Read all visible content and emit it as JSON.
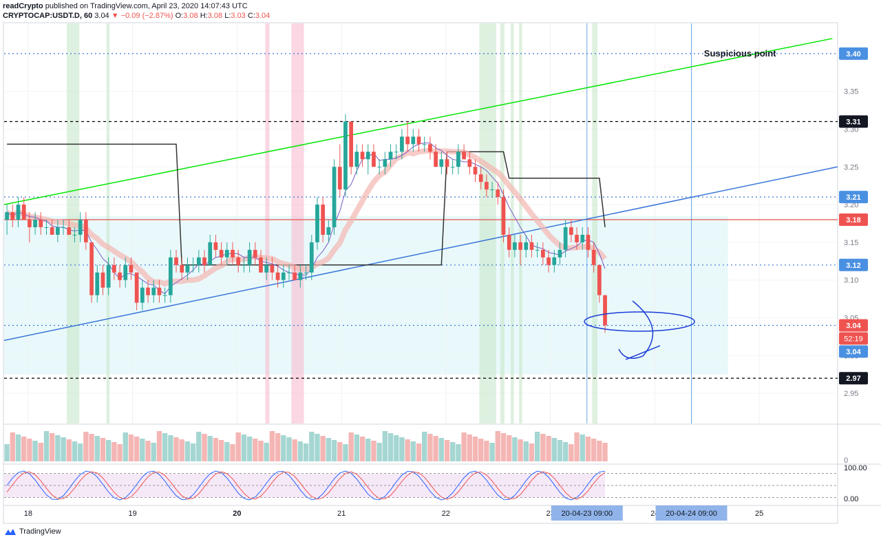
{
  "header": {
    "author": "readCrypto",
    "published": "published on TradingView.com, April 23, 2020 14:07:43 UTC",
    "symbol": "CRYPTOCAP:USDT.D, 60",
    "last": "3.04",
    "change_arrow": "▼",
    "change": "−0.09 (−2.87%)",
    "ohlc": {
      "o_label": "O:",
      "o": "3.08",
      "h_label": "H:",
      "h": "3.08",
      "l_label": "L:",
      "l": "3.03",
      "c_label": "C:",
      "c": "3.04"
    }
  },
  "footer": {
    "brand": "TradingView"
  },
  "colors": {
    "up": "#26a69a",
    "down": "#ef5350",
    "blue": "#2962ff",
    "green_line": "#00e600",
    "blue_line": "#3a76d9",
    "red_line": "#e8504a",
    "label_blue": "#4a90e2",
    "label_red": "#ef5350"
  },
  "chart_data": {
    "type": "candlestick",
    "timeframe": "60",
    "ylim": [
      2.91,
      3.44
    ],
    "y_ticks": [
      2.95,
      3.0,
      3.05,
      3.1,
      3.15,
      3.2,
      3.25,
      3.3,
      3.35
    ],
    "x_ticks": [
      {
        "label": "18",
        "x": 18.2
      },
      {
        "label": "19",
        "x": 19.2
      },
      {
        "label": "20",
        "x": 20.2
      },
      {
        "label": "21",
        "x": 21.2
      },
      {
        "label": "22",
        "x": 22.2
      },
      {
        "label": "23",
        "x": 23.2
      },
      {
        "label": "24",
        "x": 24.2
      },
      {
        "label": "25",
        "x": 25.2
      }
    ],
    "xlim": [
      17.97,
      25.95
    ],
    "price_labels": [
      {
        "value": 3.4,
        "text": "3.40",
        "style": "blue"
      },
      {
        "value": 3.31,
        "text": "3.31",
        "style": "black"
      },
      {
        "value": 3.21,
        "text": "3.21",
        "style": "blue"
      },
      {
        "value": 3.18,
        "text": "3.18",
        "style": "red"
      },
      {
        "value": 3.12,
        "text": "3.12",
        "style": "blue"
      },
      {
        "value": 3.04,
        "text": "3.04",
        "style": "red"
      },
      {
        "value": 3.04,
        "text": "3.04",
        "style": "blue"
      },
      {
        "value": 2.97,
        "text": "2.97",
        "style": "black"
      }
    ],
    "countdown": "52:19",
    "horizontal_lines": [
      {
        "value": 3.4,
        "style": "dotted",
        "color": "blue"
      },
      {
        "value": 3.31,
        "style": "dashed",
        "color": "black"
      },
      {
        "value": 3.21,
        "style": "dotted",
        "color": "blue"
      },
      {
        "value": 3.18,
        "style": "solid",
        "color": "red"
      },
      {
        "value": 3.12,
        "style": "dotted",
        "color": "blue"
      },
      {
        "value": 3.04,
        "style": "dotted",
        "color": "blue"
      },
      {
        "value": 2.97,
        "style": "dashed",
        "color": "black"
      }
    ],
    "trendlines": [
      {
        "name": "upper",
        "color": "green",
        "from": [
          17.97,
          3.2
        ],
        "to": [
          25.9,
          3.42
        ]
      },
      {
        "name": "lower",
        "color": "blue",
        "from": [
          17.97,
          3.02
        ],
        "to": [
          25.95,
          3.25
        ]
      }
    ],
    "annotation": {
      "text": "Suspicious point",
      "x": 25.4,
      "y": 3.4
    },
    "date_labels": [
      "20-04-23   09:00",
      "20-04-24   09:00"
    ],
    "volume_zero_label": "0",
    "oscillator_labels": [
      "100.00",
      "0.00"
    ],
    "candles": [
      [
        3.18,
        3.2,
        3.16,
        3.19
      ],
      [
        3.19,
        3.2,
        3.17,
        3.18
      ],
      [
        3.18,
        3.21,
        3.17,
        3.2
      ],
      [
        3.2,
        3.21,
        3.18,
        3.18
      ],
      [
        3.18,
        3.19,
        3.15,
        3.17
      ],
      [
        3.17,
        3.19,
        3.16,
        3.18
      ],
      [
        3.18,
        3.19,
        3.16,
        3.17
      ],
      [
        3.17,
        3.18,
        3.16,
        3.17
      ],
      [
        3.17,
        3.18,
        3.16,
        3.16
      ],
      [
        3.16,
        3.18,
        3.15,
        3.17
      ],
      [
        3.17,
        3.18,
        3.16,
        3.17
      ],
      [
        3.17,
        3.18,
        3.16,
        3.16
      ],
      [
        3.16,
        3.17,
        3.15,
        3.16
      ],
      [
        3.16,
        3.19,
        3.15,
        3.18
      ],
      [
        3.18,
        3.19,
        3.14,
        3.15
      ],
      [
        3.15,
        3.15,
        3.07,
        3.08
      ],
      [
        3.08,
        3.12,
        3.07,
        3.11
      ],
      [
        3.11,
        3.12,
        3.08,
        3.09
      ],
      [
        3.09,
        3.13,
        3.08,
        3.12
      ],
      [
        3.12,
        3.13,
        3.1,
        3.11
      ],
      [
        3.11,
        3.12,
        3.09,
        3.1
      ],
      [
        3.1,
        3.13,
        3.09,
        3.12
      ],
      [
        3.12,
        3.13,
        3.1,
        3.11
      ],
      [
        3.11,
        3.11,
        3.06,
        3.07
      ],
      [
        3.07,
        3.1,
        3.06,
        3.09
      ],
      [
        3.09,
        3.1,
        3.07,
        3.08
      ],
      [
        3.08,
        3.1,
        3.07,
        3.09
      ],
      [
        3.09,
        3.1,
        3.07,
        3.08
      ],
      [
        3.08,
        3.09,
        3.07,
        3.08
      ],
      [
        3.08,
        3.14,
        3.07,
        3.13
      ],
      [
        3.13,
        3.14,
        3.11,
        3.12
      ],
      [
        3.12,
        3.13,
        3.1,
        3.11
      ],
      [
        3.11,
        3.13,
        3.1,
        3.12
      ],
      [
        3.12,
        3.13,
        3.11,
        3.12
      ],
      [
        3.12,
        3.14,
        3.11,
        3.13
      ],
      [
        3.13,
        3.14,
        3.11,
        3.12
      ],
      [
        3.12,
        3.16,
        3.12,
        3.15
      ],
      [
        3.15,
        3.16,
        3.13,
        3.14
      ],
      [
        3.14,
        3.15,
        3.12,
        3.13
      ],
      [
        3.13,
        3.15,
        3.12,
        3.14
      ],
      [
        3.14,
        3.15,
        3.12,
        3.13
      ],
      [
        3.13,
        3.14,
        3.11,
        3.12
      ],
      [
        3.12,
        3.13,
        3.11,
        3.12
      ],
      [
        3.12,
        3.15,
        3.11,
        3.14
      ],
      [
        3.14,
        3.15,
        3.12,
        3.13
      ],
      [
        3.13,
        3.14,
        3.11,
        3.11
      ],
      [
        3.11,
        3.13,
        3.1,
        3.12
      ],
      [
        3.12,
        3.13,
        3.1,
        3.11
      ],
      [
        3.11,
        3.12,
        3.09,
        3.1
      ],
      [
        3.1,
        3.12,
        3.09,
        3.11
      ],
      [
        3.11,
        3.12,
        3.1,
        3.11
      ],
      [
        3.11,
        3.12,
        3.1,
        3.1
      ],
      [
        3.1,
        3.12,
        3.09,
        3.11
      ],
      [
        3.11,
        3.12,
        3.1,
        3.11
      ],
      [
        3.11,
        3.16,
        3.1,
        3.15
      ],
      [
        3.15,
        3.21,
        3.14,
        3.2
      ],
      [
        3.2,
        3.21,
        3.15,
        3.16
      ],
      [
        3.16,
        3.18,
        3.15,
        3.17
      ],
      [
        3.17,
        3.26,
        3.16,
        3.25
      ],
      [
        3.25,
        3.28,
        3.21,
        3.22
      ],
      [
        3.22,
        3.32,
        3.21,
        3.31
      ],
      [
        3.31,
        3.31,
        3.24,
        3.25
      ],
      [
        3.25,
        3.28,
        3.24,
        3.27
      ],
      [
        3.27,
        3.28,
        3.25,
        3.26
      ],
      [
        3.26,
        3.28,
        3.24,
        3.27
      ],
      [
        3.27,
        3.28,
        3.25,
        3.25
      ],
      [
        3.25,
        3.26,
        3.24,
        3.25
      ],
      [
        3.25,
        3.27,
        3.24,
        3.26
      ],
      [
        3.26,
        3.28,
        3.25,
        3.27
      ],
      [
        3.27,
        3.28,
        3.26,
        3.27
      ],
      [
        3.27,
        3.3,
        3.26,
        3.29
      ],
      [
        3.29,
        3.31,
        3.27,
        3.28
      ],
      [
        3.28,
        3.3,
        3.27,
        3.29
      ],
      [
        3.29,
        3.3,
        3.27,
        3.28
      ],
      [
        3.28,
        3.29,
        3.27,
        3.28
      ],
      [
        3.28,
        3.29,
        3.26,
        3.27
      ],
      [
        3.27,
        3.28,
        3.25,
        3.25
      ],
      [
        3.25,
        3.27,
        3.24,
        3.26
      ],
      [
        3.26,
        3.27,
        3.24,
        3.25
      ],
      [
        3.25,
        3.26,
        3.24,
        3.25
      ],
      [
        3.25,
        3.28,
        3.24,
        3.27
      ],
      [
        3.27,
        3.28,
        3.26,
        3.26
      ],
      [
        3.26,
        3.27,
        3.24,
        3.25
      ],
      [
        3.25,
        3.26,
        3.23,
        3.24
      ],
      [
        3.24,
        3.25,
        3.22,
        3.23
      ],
      [
        3.23,
        3.24,
        3.21,
        3.22
      ],
      [
        3.22,
        3.23,
        3.21,
        3.22
      ],
      [
        3.22,
        3.23,
        3.2,
        3.21
      ],
      [
        3.21,
        3.22,
        3.15,
        3.16
      ],
      [
        3.16,
        3.17,
        3.13,
        3.14
      ],
      [
        3.14,
        3.16,
        3.13,
        3.15
      ],
      [
        3.15,
        3.16,
        3.12,
        3.14
      ],
      [
        3.14,
        3.16,
        3.13,
        3.15
      ],
      [
        3.15,
        3.16,
        3.13,
        3.14
      ],
      [
        3.14,
        3.15,
        3.13,
        3.14
      ],
      [
        3.14,
        3.15,
        3.12,
        3.13
      ],
      [
        3.13,
        3.14,
        3.11,
        3.12
      ],
      [
        3.12,
        3.14,
        3.11,
        3.13
      ],
      [
        3.13,
        3.15,
        3.12,
        3.14
      ],
      [
        3.14,
        3.18,
        3.13,
        3.17
      ],
      [
        3.17,
        3.18,
        3.15,
        3.16
      ],
      [
        3.16,
        3.17,
        3.14,
        3.15
      ],
      [
        3.15,
        3.17,
        3.14,
        3.16
      ],
      [
        3.16,
        3.17,
        3.13,
        3.14
      ],
      [
        3.14,
        3.15,
        3.11,
        3.12
      ],
      [
        3.12,
        3.12,
        3.07,
        3.08
      ],
      [
        3.08,
        3.08,
        3.03,
        3.04
      ]
    ]
  }
}
